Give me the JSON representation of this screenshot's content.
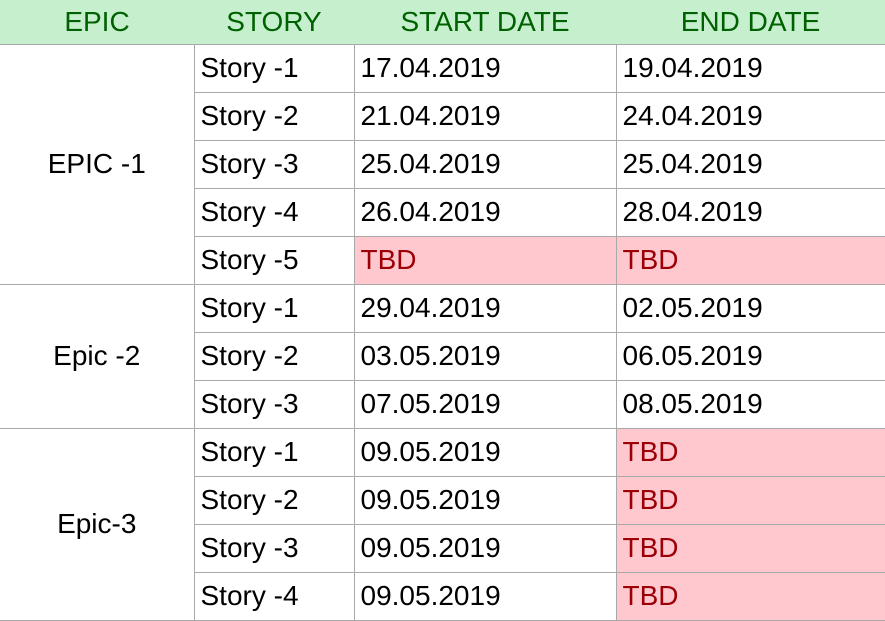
{
  "headers": {
    "epic": "EPIC",
    "story": "STORY",
    "start": "START DATE",
    "end": "END DATE"
  },
  "colors": {
    "header_fill": "#c6efce",
    "header_text": "#006100",
    "tbd_fill": "#ffc7ce",
    "tbd_text": "#9c0006",
    "grid": "#a9a9a9"
  },
  "groups": [
    {
      "epic": "EPIC -1",
      "rows": [
        {
          "story": "Story -1",
          "start": "17.04.2019",
          "end": "19.04.2019"
        },
        {
          "story": "Story -2",
          "start": "21.04.2019",
          "end": "24.04.2019"
        },
        {
          "story": "Story -3",
          "start": "25.04.2019",
          "end": "25.04.2019"
        },
        {
          "story": "Story -4",
          "start": "26.04.2019",
          "end": "28.04.2019"
        },
        {
          "story": "Story -5",
          "start": "TBD",
          "end": "TBD"
        }
      ]
    },
    {
      "epic": "Epic -2",
      "rows": [
        {
          "story": "Story -1",
          "start": "29.04.2019",
          "end": "02.05.2019"
        },
        {
          "story": "Story -2",
          "start": "03.05.2019",
          "end": "06.05.2019"
        },
        {
          "story": "Story -3",
          "start": "07.05.2019",
          "end": "08.05.2019"
        }
      ]
    },
    {
      "epic": "Epic-3",
      "rows": [
        {
          "story": "Story -1",
          "start": "09.05.2019",
          "end": "TBD"
        },
        {
          "story": "Story -2",
          "start": "09.05.2019",
          "end": "TBD"
        },
        {
          "story": "Story -3",
          "start": "09.05.2019",
          "end": "TBD"
        },
        {
          "story": "Story -4",
          "start": "09.05.2019",
          "end": "TBD"
        }
      ]
    }
  ]
}
